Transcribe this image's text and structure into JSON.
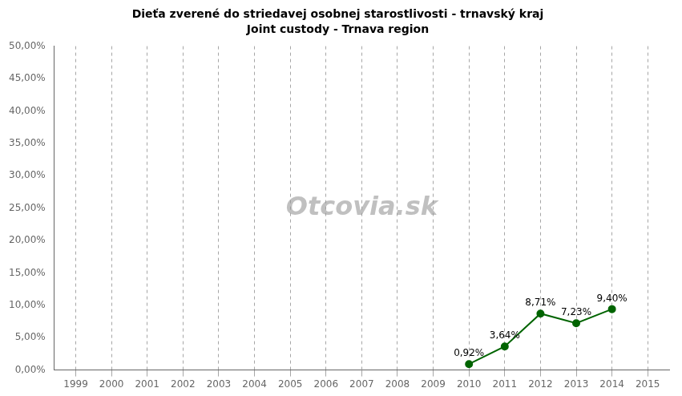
{
  "chart_data": {
    "type": "line",
    "title": "Dieťa zverené do striedavej osobnej starostlivosti - trnavský kraj",
    "subtitle": "Joint custody - Trnava region",
    "x": [
      2010,
      2011,
      2012,
      2013,
      2014
    ],
    "values": [
      0.0092,
      0.0364,
      0.0871,
      0.0723,
      0.094
    ],
    "value_labels": [
      "0,92%",
      "3,64%",
      "8,71%",
      "7,23%",
      "9,40%"
    ],
    "data_labels": true,
    "color": "#006400",
    "marker": "circle",
    "xlim": [
      1998.4,
      2015.6
    ],
    "xticks": [
      1999,
      2000,
      2001,
      2002,
      2003,
      2004,
      2005,
      2006,
      2007,
      2008,
      2009,
      2010,
      2011,
      2012,
      2013,
      2014,
      2015
    ],
    "ylim": [
      0.0,
      0.5
    ],
    "yticks": [
      {
        "value": 0.0,
        "label": "0,00%"
      },
      {
        "value": 0.05,
        "label": "5,00%"
      },
      {
        "value": 0.1,
        "label": "10,00%"
      },
      {
        "value": 0.15,
        "label": "15,00%"
      },
      {
        "value": 0.2,
        "label": "20,00%"
      },
      {
        "value": 0.25,
        "label": "25,00%"
      },
      {
        "value": 0.3,
        "label": "30,00%"
      },
      {
        "value": 0.35,
        "label": "35,00%"
      },
      {
        "value": 0.4,
        "label": "40,00%"
      },
      {
        "value": 0.45,
        "label": "45,00%"
      },
      {
        "value": 0.5,
        "label": "50,00%"
      }
    ],
    "grid": "x",
    "annotations": [
      {
        "text": "Otcovia.sk"
      }
    ]
  }
}
